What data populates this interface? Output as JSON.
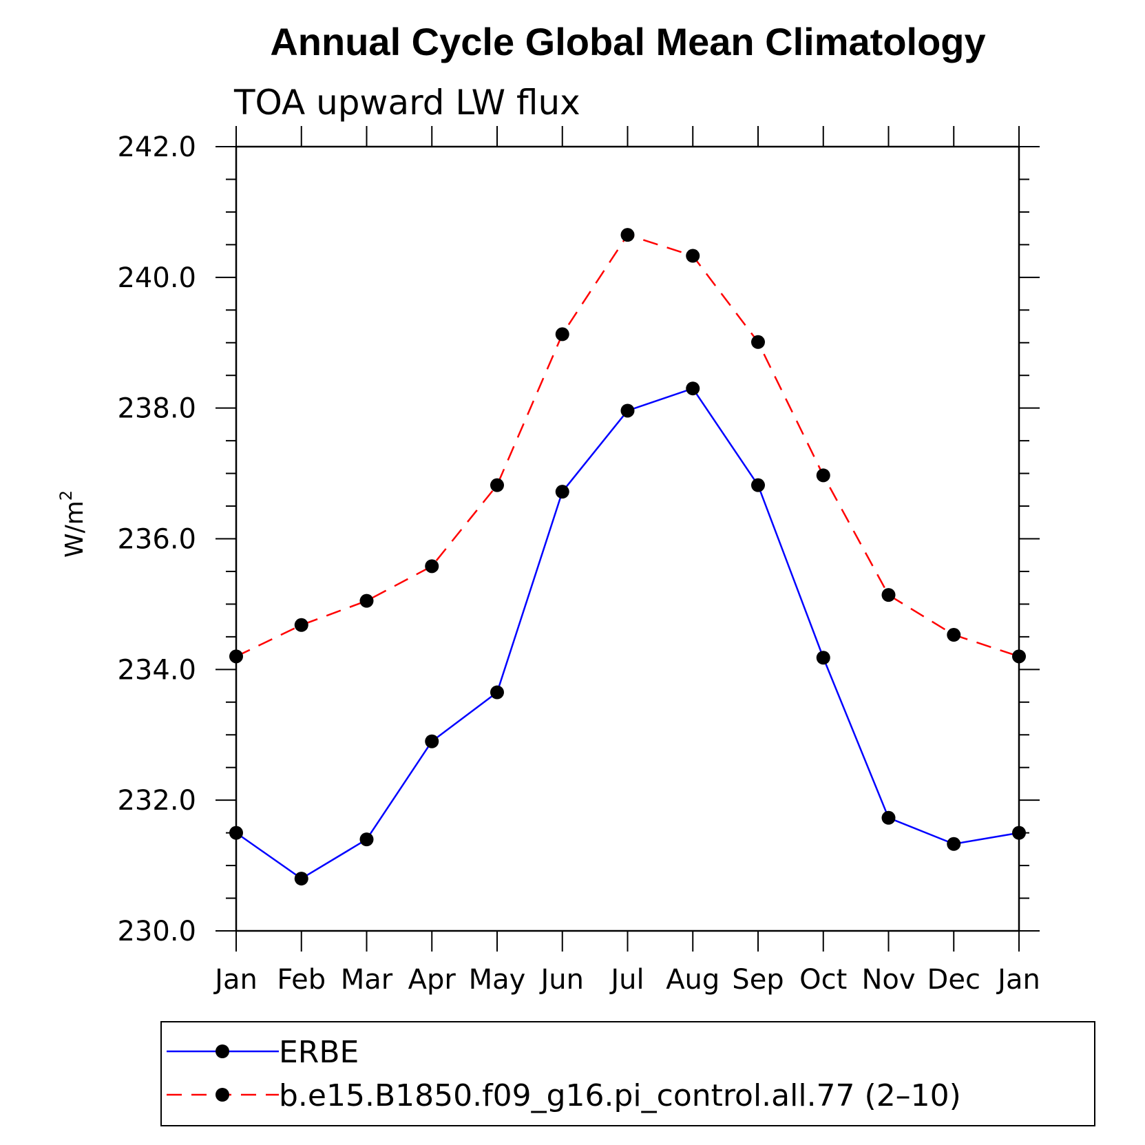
{
  "chart_data": {
    "type": "line",
    "title": "Annual Cycle Global Mean Climatology",
    "subtitle": "TOA upward LW flux",
    "ylabel": "W/m",
    "ylabel_sup": "2",
    "xlabel": "",
    "categories": [
      "Jan",
      "Feb",
      "Mar",
      "Apr",
      "May",
      "Jun",
      "Jul",
      "Aug",
      "Sep",
      "Oct",
      "Nov",
      "Dec",
      "Jan"
    ],
    "ylim": [
      230.0,
      242.0
    ],
    "y_ticks": [
      230.0,
      232.0,
      234.0,
      236.0,
      238.0,
      240.0,
      242.0
    ],
    "y_tick_labels": [
      "230.0",
      "232.0",
      "234.0",
      "236.0",
      "238.0",
      "240.0",
      "242.0"
    ],
    "grid": false,
    "legend_position": "bottom",
    "series": [
      {
        "name": "ERBE",
        "color": "#0000ff",
        "line_style": "solid",
        "marker": "filled-circle",
        "values": [
          231.5,
          230.8,
          231.4,
          232.9,
          233.65,
          236.72,
          237.96,
          238.3,
          236.82,
          234.18,
          231.73,
          231.33,
          231.5
        ]
      },
      {
        "name": "b.e15.B1850.f09_g16.pi_control.all.77 (2–10)",
        "color": "#ff0000",
        "line_style": "dashed",
        "marker": "filled-circle",
        "values": [
          234.2,
          234.68,
          235.05,
          235.58,
          236.82,
          239.13,
          240.65,
          240.33,
          239.01,
          236.97,
          235.14,
          234.53,
          234.2
        ]
      }
    ]
  }
}
